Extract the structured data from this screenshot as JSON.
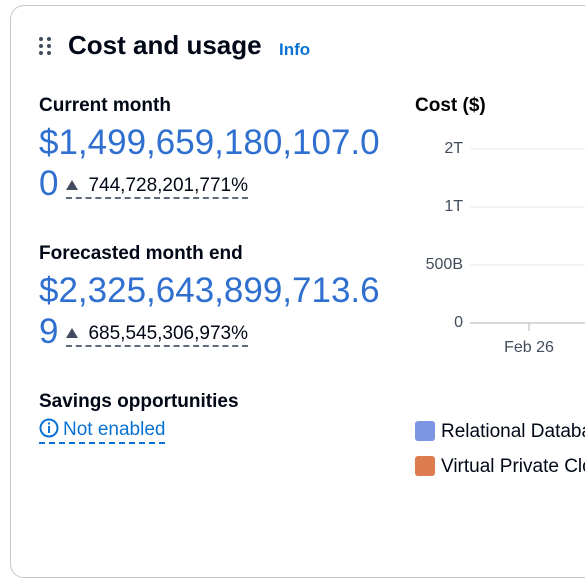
{
  "header": {
    "title": "Cost and usage",
    "info": "Info"
  },
  "current_month": {
    "label": "Current month",
    "value": "$1,499,659,180,107.00",
    "change": "744,728,201,771%"
  },
  "forecast": {
    "label": "Forecasted month end",
    "value": "$2,325,643,899,713.69",
    "change": "685,545,306,973%"
  },
  "savings": {
    "label": "Savings opportunities",
    "link": "Not enabled"
  },
  "chart_data": {
    "type": "bar",
    "y_label": "Cost ($)",
    "categories": [
      "Feb 26"
    ],
    "yticks": [
      {
        "value": 0,
        "label": "0"
      },
      {
        "value": 500000000000,
        "label": "500B"
      },
      {
        "value": 1000000000000,
        "label": "1T"
      },
      {
        "value": 2000000000000,
        "label": "2T"
      }
    ],
    "series": [
      {
        "name": "Relational Database Service",
        "color": "#7d95e3"
      },
      {
        "name": "Virtual Private Cloud",
        "color": "#dd7d4f"
      }
    ]
  }
}
